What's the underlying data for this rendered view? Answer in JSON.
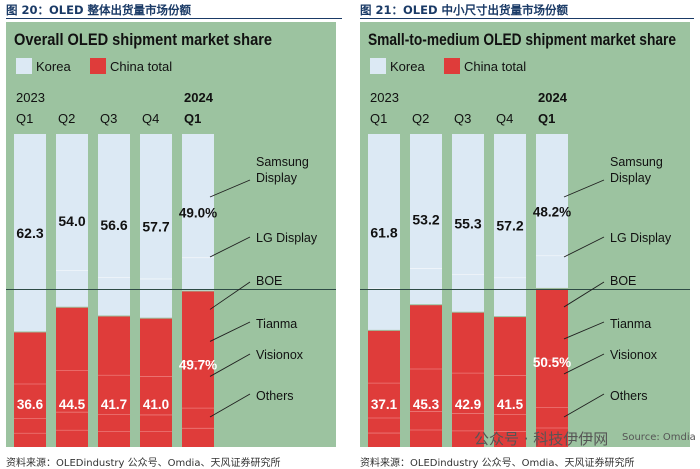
{
  "source_text": "资料来源：OLEDindustry 公众号、Omdia、天风证券研究所",
  "watermark": "公众号 · 科技伊伊网",
  "watermark_source": "Source: Omdia",
  "colors": {
    "panel_bg": "#9cc3a0",
    "korea": "#dce9f4",
    "china": "#df3c3a",
    "text": "#111111"
  },
  "chart_data": [
    {
      "type": "bar",
      "figure_label": "图 20：OLED 整体出货量市场份额",
      "title": "Overall OLED shipment market share",
      "legend": [
        "Korea",
        "China total"
      ],
      "year_labels": [
        "2023",
        "",
        "",
        "",
        "2024"
      ],
      "categories": [
        "Q1",
        "Q2",
        "Q3",
        "Q4",
        "Q1"
      ],
      "series": [
        {
          "name": "Korea",
          "values": [
            62.3,
            54.0,
            56.6,
            57.7,
            49.0
          ],
          "labels": [
            "62.3",
            "54.0",
            "56.6",
            "57.7",
            "49.0%"
          ]
        },
        {
          "name": "China total",
          "values": [
            36.6,
            44.5,
            41.7,
            41.0,
            49.7
          ],
          "labels": [
            "36.6",
            "44.5",
            "41.7",
            "41.0",
            "49.7%"
          ]
        }
      ],
      "ylim": [
        0,
        100
      ],
      "reference_line": 50,
      "company_labels": [
        "Samsung Display",
        "LG Display",
        "BOE",
        "Tianma",
        "Visionox",
        "Others"
      ]
    },
    {
      "type": "bar",
      "figure_label": "图 21：OLED 中小尺寸出货量市场份额",
      "title": "Small-to-medium OLED shipment market share",
      "legend": [
        "Korea",
        "China total"
      ],
      "year_labels": [
        "2023",
        "",
        "",
        "",
        "2024"
      ],
      "categories": [
        "Q1",
        "Q2",
        "Q3",
        "Q4",
        "Q1"
      ],
      "series": [
        {
          "name": "Korea",
          "values": [
            61.8,
            53.2,
            55.3,
            57.2,
            48.2
          ],
          "labels": [
            "61.8",
            "53.2",
            "55.3",
            "57.2",
            "48.2%"
          ]
        },
        {
          "name": "China total",
          "values": [
            37.1,
            45.3,
            42.9,
            41.5,
            50.5
          ],
          "labels": [
            "37.1",
            "45.3",
            "42.9",
            "41.5",
            "50.5%"
          ]
        }
      ],
      "ylim": [
        0,
        100
      ],
      "reference_line": 50,
      "company_labels": [
        "Samsung Display",
        "LG Display",
        "BOE",
        "Tianma",
        "Visionox",
        "Others"
      ]
    }
  ]
}
